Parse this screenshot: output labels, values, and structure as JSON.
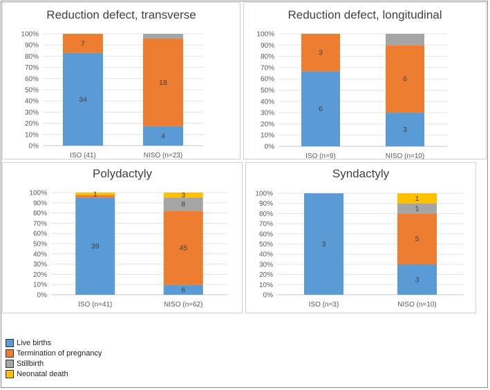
{
  "legend": {
    "items": [
      {
        "label": "Live births",
        "color": "#5b9bd5"
      },
      {
        "label": "Termination of pregnancy",
        "color": "#ed7d31"
      },
      {
        "label": "Stillbirth",
        "color": "#a5a5a5"
      },
      {
        "label": "Neonatal death",
        "color": "#ffc000"
      }
    ]
  },
  "chart_data": [
    {
      "type": "bar",
      "stacked": "percent",
      "title": "Reduction defect, transverse",
      "categories": [
        "ISO (41)",
        "NISO (n=23)"
      ],
      "ylim": [
        0,
        100
      ],
      "yticks": [
        "0%",
        "10%",
        "20%",
        "30%",
        "40%",
        "50%",
        "60%",
        "70%",
        "80%",
        "90%",
        "100%"
      ],
      "series": [
        {
          "name": "Live births",
          "values": [
            34,
            4
          ]
        },
        {
          "name": "Termination of pregnancy",
          "values": [
            7,
            18
          ]
        },
        {
          "name": "Stillbirth",
          "values": [
            0,
            1
          ]
        },
        {
          "name": "Neonatal death",
          "values": [
            0,
            0
          ]
        }
      ],
      "shown_labels": [
        [
          "34",
          "4"
        ],
        [
          "7",
          "18"
        ],
        [
          "",
          ""
        ],
        [
          "",
          ""
        ]
      ]
    },
    {
      "type": "bar",
      "stacked": "percent",
      "title": "Reduction defect, longitudinal",
      "categories": [
        "ISO (n=9)",
        "NISO (n=10)"
      ],
      "ylim": [
        0,
        100
      ],
      "yticks": [
        "0%",
        "10%",
        "20%",
        "30%",
        "40%",
        "50%",
        "60%",
        "70%",
        "80%",
        "90%",
        "100%"
      ],
      "series": [
        {
          "name": "Live births",
          "values": [
            6,
            3
          ]
        },
        {
          "name": "Termination of pregnancy",
          "values": [
            3,
            6
          ]
        },
        {
          "name": "Stillbirth",
          "values": [
            0,
            1
          ]
        },
        {
          "name": "Neonatal death",
          "values": [
            0,
            0
          ]
        }
      ],
      "shown_labels": [
        [
          "6",
          "3"
        ],
        [
          "3",
          "6"
        ],
        [
          "",
          ""
        ],
        [
          "",
          ""
        ]
      ]
    },
    {
      "type": "bar",
      "stacked": "percent",
      "title": "Polydactyly",
      "categories": [
        "ISO (n=41)",
        "NISO (n=62)"
      ],
      "ylim": [
        0,
        100
      ],
      "yticks": [
        "0%",
        "10%",
        "20%",
        "30%",
        "40%",
        "50%",
        "60%",
        "70%",
        "80%",
        "90%",
        "100%"
      ],
      "series": [
        {
          "name": "Live births",
          "values": [
            39,
            6
          ]
        },
        {
          "name": "Termination of pregnancy",
          "values": [
            1,
            45
          ]
        },
        {
          "name": "Stillbirth",
          "values": [
            0,
            8
          ]
        },
        {
          "name": "Neonatal death",
          "values": [
            1,
            3
          ]
        }
      ],
      "shown_labels": [
        [
          "39",
          "6"
        ],
        [
          "",
          "45"
        ],
        [
          "",
          "8"
        ],
        [
          "1",
          "3"
        ]
      ]
    },
    {
      "type": "bar",
      "stacked": "percent",
      "title": "Syndactyly",
      "categories": [
        "ISO (n=3)",
        "NISO (n=10)"
      ],
      "ylim": [
        0,
        100
      ],
      "yticks": [
        "0%",
        "10%",
        "20%",
        "30%",
        "40%",
        "50%",
        "60%",
        "70%",
        "80%",
        "90%",
        "100%"
      ],
      "series": [
        {
          "name": "Live births",
          "values": [
            3,
            3
          ]
        },
        {
          "name": "Termination of pregnancy",
          "values": [
            0,
            5
          ]
        },
        {
          "name": "Stillbirth",
          "values": [
            0,
            1
          ]
        },
        {
          "name": "Neonatal death",
          "values": [
            0,
            1
          ]
        }
      ],
      "shown_labels": [
        [
          "3",
          "3"
        ],
        [
          "",
          "5"
        ],
        [
          "",
          "1"
        ],
        [
          "",
          "1"
        ]
      ]
    }
  ]
}
